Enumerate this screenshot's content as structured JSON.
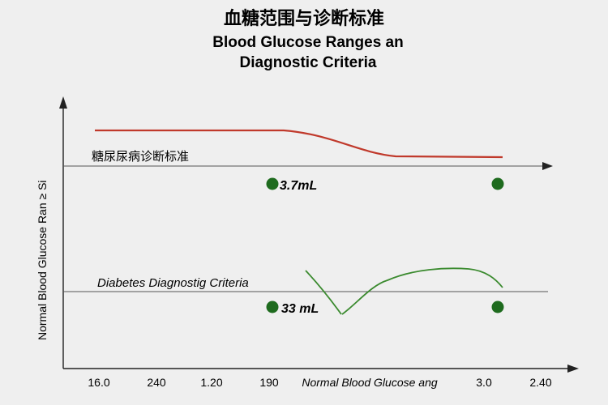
{
  "chart_data": {
    "type": "line",
    "title": "血糖范围与诊断标准",
    "subtitle_line1": "Blood Glucose Ranges an",
    "subtitle_line2": "Diagnostic Criteria",
    "ylabel": "Normal Blood Glucose Ran ≥ Si",
    "xlabel": "Normal Blood Glucose ang",
    "x_tick_labels": [
      "16.0",
      "240",
      "1.20",
      "190",
      "3.0",
      "2.40"
    ],
    "reference_lines": [
      {
        "label": "糖尿尿病诊断标准",
        "style": "normal"
      },
      {
        "label": "Diabetes Diagnostig Criteria",
        "style": "italic"
      }
    ],
    "series": [
      {
        "color": "#c0392b",
        "level": "upper"
      },
      {
        "color": "#3a8a2e",
        "level": "lower"
      }
    ],
    "points": [
      {
        "label": "3.7mL",
        "row": "upper",
        "side": "left"
      },
      {
        "label": "",
        "row": "upper",
        "side": "right"
      },
      {
        "label": "33 mL",
        "row": "lower",
        "side": "left"
      },
      {
        "label": "",
        "row": "lower",
        "side": "right"
      }
    ],
    "colors": {
      "point": "#1e6b1e",
      "axis": "#222222",
      "refline": "#555555"
    }
  }
}
